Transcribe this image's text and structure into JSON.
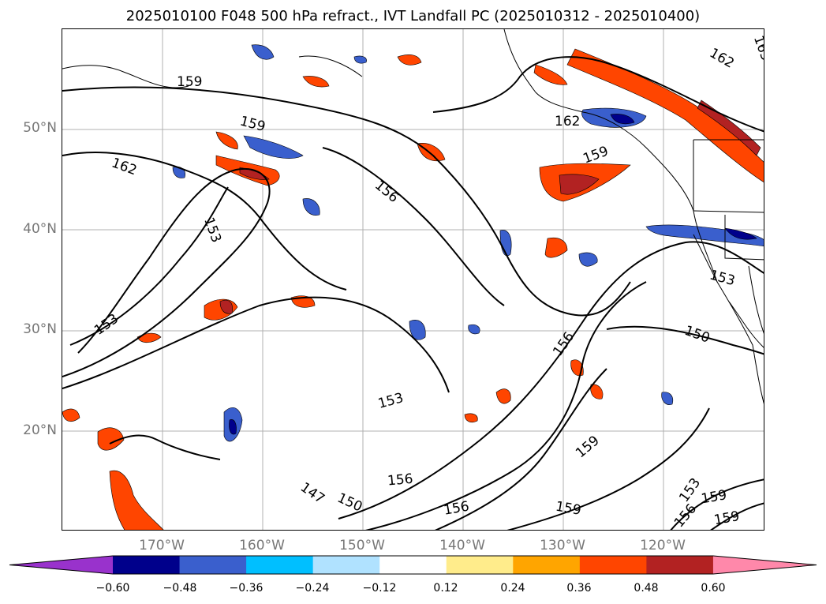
{
  "title": "2025010100 F048 500 hPa refract., IVT Landfall PC (2025010312 - 2025010400)",
  "map": {
    "lat_labels": [
      "50°N",
      "40°N",
      "30°N",
      "20°N"
    ],
    "lon_labels": [
      "170°W",
      "160°W",
      "150°W",
      "140°W",
      "130°W",
      "120°W"
    ],
    "contour_labels": [
      "159",
      "159",
      "162",
      "156",
      "153",
      "153",
      "156",
      "153",
      "156",
      "156",
      "147",
      "150",
      "162",
      "159",
      "162",
      "150",
      "153",
      "159",
      "159",
      "159",
      "153",
      "156",
      "159",
      "165"
    ]
  },
  "colorbar": {
    "ticks": [
      "−0.60",
      "−0.48",
      "−0.36",
      "−0.24",
      "−0.12",
      "0.12",
      "0.24",
      "0.36",
      "0.48",
      "0.60"
    ],
    "colors": [
      "#9932cc",
      "#00008b",
      "#3a5fcd",
      "#00bfff",
      "#b0e2ff",
      "#ffffff",
      "#ffec8b",
      "#ffa500",
      "#ff4500",
      "#b22222",
      "#ff88aa"
    ]
  }
}
